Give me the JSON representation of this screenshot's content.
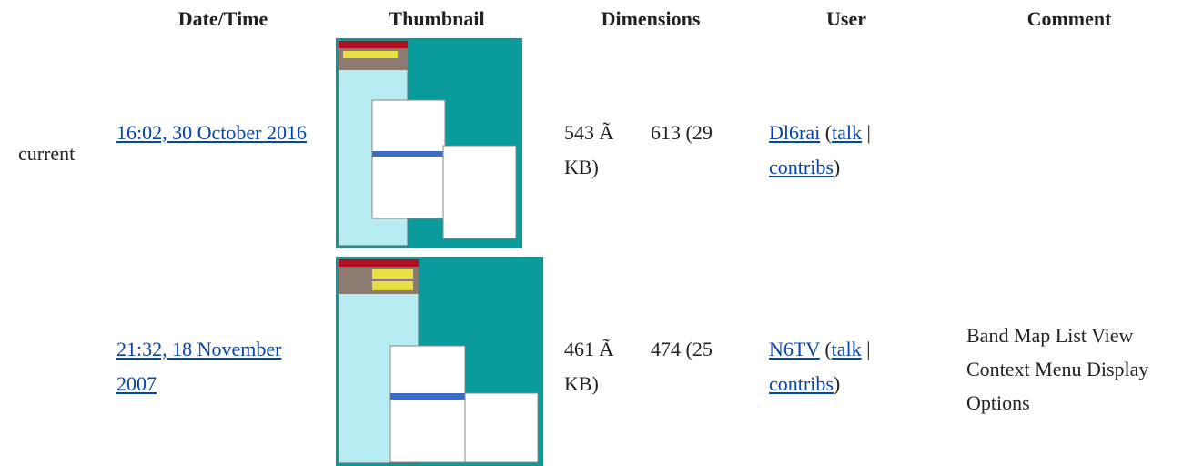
{
  "header": {
    "columns": [
      "Date/Time",
      "Thumbnail",
      "Dimensions",
      "User",
      "Comment"
    ]
  },
  "rows": [
    {
      "status": "current",
      "date": "16:02, 30 October 2016",
      "dimensions": [
        "543 Ã",
        "613 (29",
        "KB)"
      ],
      "user": "Dl6rai",
      "open": "(",
      "talk": "talk",
      "sep": "|",
      "contribs": "contribs",
      "close": ")",
      "comment": ""
    },
    {
      "date": "21:32, 18 November 2007",
      "dimensions": [
        "461 Ã",
        "474 (25",
        "KB)"
      ],
      "user": "N6TV",
      "open": "(",
      "talk": "talk",
      "sep": "|",
      "contribs": "contribs",
      "close": ")",
      "comment": "Band Map List View Context Menu Display Options"
    }
  ]
}
